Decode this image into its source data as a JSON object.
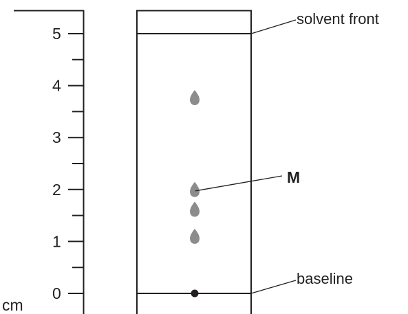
{
  "ruler": {
    "unit_label": "cm",
    "ticks": [
      {
        "value": 0,
        "label": "0"
      },
      {
        "value": 1,
        "label": "1"
      },
      {
        "value": 2,
        "label": "2"
      },
      {
        "value": 3,
        "label": "3"
      },
      {
        "value": 4,
        "label": "4"
      },
      {
        "value": 5,
        "label": "5"
      }
    ],
    "minor_ticks": [
      0.5,
      1.5,
      2.5,
      3.5,
      4.5
    ]
  },
  "plate": {
    "solvent_front_cm": 5,
    "baseline_cm": 0
  },
  "spots": [
    {
      "value": 3.77,
      "kind": "spot"
    },
    {
      "value": 2.0,
      "kind": "spot"
    },
    {
      "value": 1.62,
      "kind": "spot"
    },
    {
      "value": 1.1,
      "kind": "spot"
    },
    {
      "value": 0,
      "kind": "origin"
    }
  ],
  "labels": {
    "solvent_front": "solvent front",
    "baseline": "baseline",
    "m_marker": "M"
  },
  "colors": {
    "line": "#231f20",
    "spot": "#8c8c8c",
    "origin_dot": "#231f20",
    "background": "#ffffff"
  }
}
